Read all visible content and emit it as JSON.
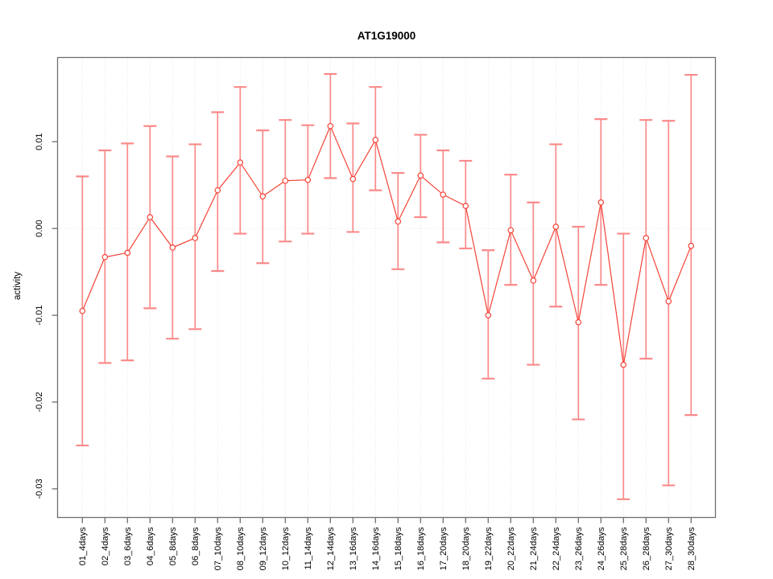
{
  "window": {
    "background": "#ffffff"
  },
  "chart_data": {
    "type": "line",
    "title": "AT1G19000",
    "xlabel": "",
    "ylabel": "activity",
    "legend": "none",
    "error_bars": true,
    "marker": "open-circle",
    "x_tick_rotation": -90,
    "y_tick_rotation": -90,
    "ylim": [
      -0.0333,
      0.0197
    ],
    "yticks": [
      0.01,
      0.0,
      -0.01,
      -0.02,
      -0.03
    ],
    "ytick_labels": [
      "0.01",
      "0.00",
      "-0.01",
      "-0.02",
      "-0.03"
    ],
    "grid": {
      "vertical_dotted": true,
      "zero_line_dotted": true
    },
    "categories": [
      "01_4days",
      "02_4days",
      "03_6days",
      "04_6days",
      "05_8days",
      "06_8days",
      "07_10days",
      "08_10days",
      "09_12days",
      "10_12days",
      "11_14days",
      "12_14days",
      "13_16days",
      "14_16days",
      "15_18days",
      "16_18days",
      "17_20days",
      "18_20days",
      "19_22days",
      "20_22days",
      "21_24days",
      "22_24days",
      "23_26days",
      "24_26days",
      "25_28days",
      "26_28days",
      "27_30days",
      "28_30days"
    ],
    "series": [
      {
        "name": "activity",
        "values": [
          -0.0095,
          -0.0033,
          -0.0028,
          0.0013,
          -0.0022,
          -0.0011,
          0.0044,
          0.0076,
          0.0037,
          0.0055,
          0.0056,
          0.0118,
          0.0057,
          0.0102,
          0.0008,
          0.0061,
          0.0039,
          0.0026,
          -0.01,
          -0.0002,
          -0.006,
          0.0002,
          -0.0108,
          0.003,
          -0.0157,
          -0.0011,
          -0.0084,
          -0.002
        ],
        "upper": [
          0.006,
          0.009,
          0.0098,
          0.0118,
          0.0083,
          0.0097,
          0.0134,
          0.0163,
          0.0113,
          0.0125,
          0.0119,
          0.0178,
          0.0121,
          0.0163,
          0.0064,
          0.0108,
          0.009,
          0.0078,
          -0.0025,
          0.0062,
          0.003,
          0.0097,
          0.0002,
          0.0126,
          -0.0006,
          0.0125,
          0.0124,
          0.0177
        ],
        "lower": [
          -0.025,
          -0.0155,
          -0.0152,
          -0.0092,
          -0.0127,
          -0.0116,
          -0.0049,
          -0.0006,
          -0.004,
          -0.0015,
          -0.0006,
          0.0058,
          -0.0004,
          0.0044,
          -0.0047,
          0.0013,
          -0.0016,
          -0.0023,
          -0.0173,
          -0.0065,
          -0.0157,
          -0.009,
          -0.022,
          -0.0065,
          -0.0312,
          -0.015,
          -0.0296,
          -0.0215
        ]
      }
    ],
    "colors": {
      "line": "#f44336",
      "marker_fill": "#ffffff",
      "error_bar": "#fb8a8a",
      "grid": "#dedede",
      "axis": "#6e6e6e",
      "text": "#000000"
    }
  }
}
